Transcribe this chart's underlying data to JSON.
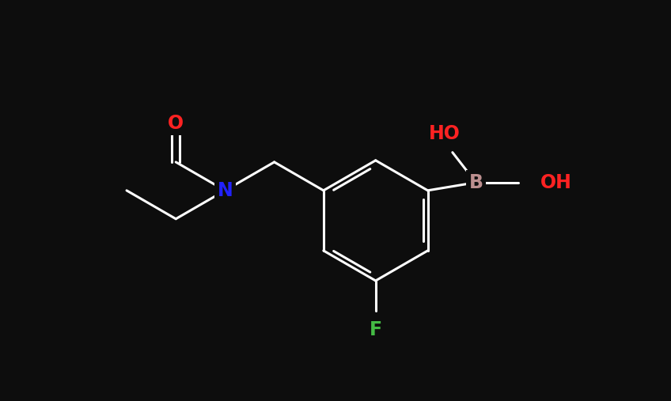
{
  "background_color": "#0d0d0d",
  "atom_colors": {
    "B": "#bc8f8f",
    "O": "#ff2222",
    "N": "#2222ff",
    "F": "#44bb44",
    "C": "#ffffff",
    "H": "#ffffff"
  },
  "bond_color": "#ffffff",
  "bond_lw": 2.2,
  "font_size": 17,
  "figsize": [
    8.48,
    5.07
  ],
  "dpi": 100,
  "xlim": [
    0,
    10
  ],
  "ylim": [
    0,
    6
  ]
}
